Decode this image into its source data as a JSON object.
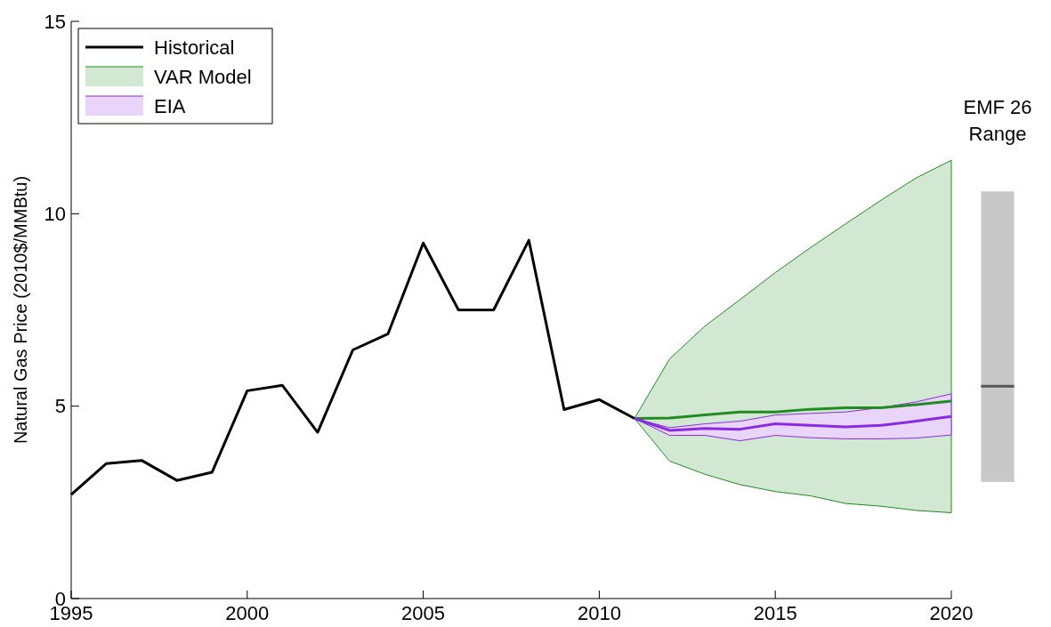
{
  "chart_data": [
    {
      "type": "line",
      "ylabel": "Natural Gas Price (2010$/MMBtu)",
      "xlim": [
        1995,
        2020
      ],
      "xticks": [
        1995,
        2000,
        2005,
        2010,
        2015,
        2020
      ],
      "ylim": [
        0,
        15
      ],
      "yticks": [
        0,
        5,
        10,
        15
      ],
      "legend": "top left",
      "line_style": "solid",
      "series": [
        {
          "name": "Historical",
          "color": "#000000",
          "x": [
            1995,
            1996,
            1997,
            1998,
            1999,
            2000,
            2001,
            2002,
            2003,
            2004,
            2005,
            2006,
            2007,
            2008,
            2009,
            2010,
            2011
          ],
          "values": [
            2.7,
            3.51,
            3.59,
            3.07,
            3.28,
            5.4,
            5.54,
            4.32,
            6.46,
            6.88,
            9.24,
            7.5,
            7.5,
            9.31,
            4.91,
            5.17,
            4.68
          ]
        },
        {
          "name": "VAR Model",
          "color": "#228b22",
          "x": [
            2011,
            2012,
            2013,
            2014,
            2015,
            2016,
            2017,
            2018,
            2019,
            2020
          ],
          "values": [
            4.68,
            4.69,
            4.77,
            4.85,
            4.85,
            4.92,
            4.96,
            4.96,
            5.04,
            5.13
          ],
          "lower": [
            4.68,
            3.57,
            3.23,
            2.96,
            2.78,
            2.67,
            2.47,
            2.4,
            2.29,
            2.23
          ],
          "upper": [
            4.68,
            6.23,
            7.08,
            7.77,
            8.47,
            9.12,
            9.74,
            10.35,
            10.93,
            11.39
          ]
        },
        {
          "name": "EIA",
          "color": "#8a2be2",
          "x": [
            2011,
            2012,
            2013,
            2014,
            2015,
            2016,
            2017,
            2018,
            2019,
            2020
          ],
          "values": [
            4.68,
            4.37,
            4.42,
            4.4,
            4.54,
            4.5,
            4.46,
            4.5,
            4.61,
            4.73
          ],
          "lower": [
            4.68,
            4.24,
            4.24,
            4.1,
            4.24,
            4.18,
            4.15,
            4.15,
            4.17,
            4.25
          ],
          "upper": [
            4.68,
            4.44,
            4.54,
            4.61,
            4.77,
            4.81,
            4.85,
            4.96,
            5.11,
            5.32
          ]
        }
      ]
    },
    {
      "type": "bar",
      "title": "EMF 26 Range",
      "categories": [
        null
      ],
      "base": [
        3.03
      ],
      "values": [
        7.55
      ],
      "color": "#c8c8c8",
      "ylim": [
        0,
        15
      ],
      "ref_lines": [
        {
          "axis": "y",
          "value": 5.52,
          "color": "#555555"
        }
      ]
    }
  ]
}
